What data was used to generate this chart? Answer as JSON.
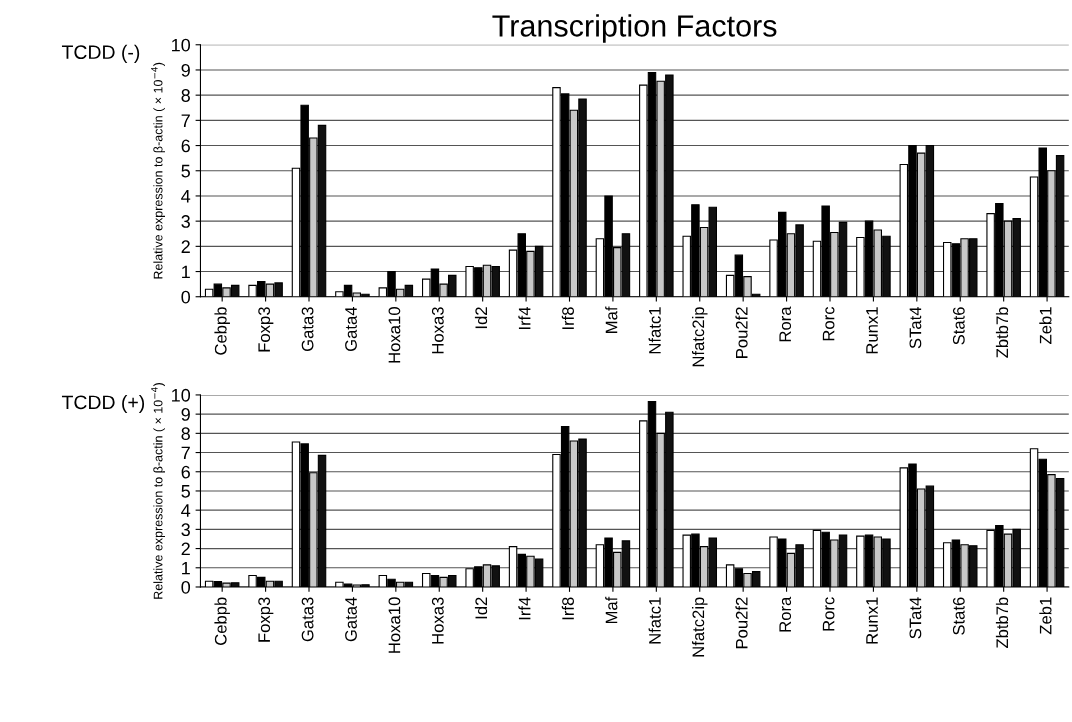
{
  "chart_data": [
    {
      "type": "bar",
      "title": "Transcription Factors",
      "subtitle": "TCDD (-)",
      "ylabel": "Relative expression to β-actin ( × 10$^{−4}$)",
      "categories": [
        "Cebpb",
        "Foxp3",
        "Gata3",
        "Gata4",
        "Hoxa10",
        "Hoxa3",
        "Id2",
        "Irf4",
        "Irf8",
        "Maf",
        "Nfatc1",
        "Nfatc2ip",
        "Pou2f2",
        "Rora",
        "Rorc",
        "Runx1",
        "STat4",
        "Stat6",
        "Zbtb7b",
        "Zeb1"
      ],
      "series": [
        {
          "color": "#ffffff",
          "values": [
            0.3,
            0.45,
            5.1,
            0.2,
            0.35,
            0.7,
            1.2,
            1.85,
            8.3,
            2.3,
            8.4,
            2.4,
            0.85,
            2.25,
            2.2,
            2.35,
            5.25,
            2.15,
            3.3,
            4.75
          ]
        },
        {
          "color": "#000000",
          "values": [
            0.5,
            0.6,
            7.6,
            0.45,
            1.0,
            1.1,
            1.15,
            2.5,
            8.05,
            4.0,
            8.9,
            3.65,
            1.65,
            3.35,
            3.6,
            3.0,
            6.0,
            2.1,
            3.7,
            5.9
          ]
        },
        {
          "color": "#c8c8c8",
          "values": [
            0.35,
            0.5,
            6.3,
            0.15,
            0.3,
            0.5,
            1.25,
            1.8,
            7.4,
            1.95,
            8.55,
            2.75,
            0.8,
            2.5,
            2.55,
            2.65,
            5.7,
            2.3,
            3.0,
            5.0
          ]
        },
        {
          "color": "#111111",
          "values": [
            0.45,
            0.55,
            6.8,
            0.1,
            0.45,
            0.85,
            1.2,
            2.0,
            7.85,
            2.5,
            8.8,
            3.55,
            0.1,
            2.85,
            2.95,
            2.4,
            6.0,
            2.3,
            3.1,
            5.6
          ]
        }
      ],
      "ylim": [
        0,
        10
      ],
      "yticks": [
        0,
        1,
        2,
        3,
        4,
        5,
        6,
        7,
        8,
        9,
        10
      ],
      "grid": "y"
    },
    {
      "type": "bar",
      "subtitle": "TCDD (+)",
      "ylabel": "Relative expression to β-actin ( × 10$^{−4}$)",
      "categories": [
        "Cebpb",
        "Foxp3",
        "Gata3",
        "Gata4",
        "Hoxa10",
        "Hoxa3",
        "Id2",
        "Irf4",
        "Irf8",
        "Maf",
        "Nfatc1",
        "Nfatc2ip",
        "Pou2f2",
        "Rora",
        "Rorc",
        "Runx1",
        "STat4",
        "Stat6",
        "Zbtb7b",
        "Zeb1"
      ],
      "series": [
        {
          "color": "#ffffff",
          "values": [
            0.3,
            0.6,
            7.55,
            0.25,
            0.6,
            0.7,
            0.95,
            2.1,
            6.9,
            2.2,
            8.65,
            2.7,
            1.15,
            2.6,
            2.95,
            2.65,
            6.2,
            2.3,
            2.95,
            7.2
          ]
        },
        {
          "color": "#000000",
          "values": [
            0.28,
            0.5,
            7.45,
            0.15,
            0.4,
            0.6,
            1.05,
            1.7,
            8.35,
            2.55,
            9.65,
            2.75,
            0.95,
            2.5,
            2.85,
            2.7,
            6.4,
            2.45,
            3.2,
            6.65
          ]
        },
        {
          "color": "#c8c8c8",
          "values": [
            0.2,
            0.3,
            5.95,
            0.1,
            0.25,
            0.5,
            1.15,
            1.6,
            7.6,
            1.8,
            8.0,
            2.1,
            0.7,
            1.75,
            2.45,
            2.6,
            5.1,
            2.2,
            2.75,
            5.85
          ]
        },
        {
          "color": "#111111",
          "values": [
            0.22,
            0.3,
            6.85,
            0.12,
            0.25,
            0.6,
            1.1,
            1.45,
            7.7,
            2.4,
            9.1,
            2.55,
            0.8,
            2.2,
            2.7,
            2.5,
            5.25,
            2.15,
            3.0,
            5.65
          ]
        }
      ],
      "ylim": [
        0,
        10
      ],
      "yticks": [
        0,
        1,
        2,
        3,
        4,
        5,
        6,
        7,
        8,
        9,
        10
      ],
      "grid": "y"
    }
  ]
}
